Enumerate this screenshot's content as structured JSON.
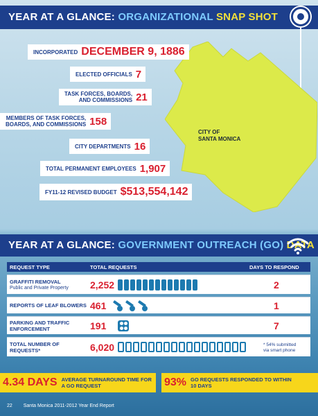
{
  "section1": {
    "title_part1": "YEAR AT A GLANCE:",
    "title_part2": "ORGANIZATIONAL",
    "title_part3": "SNAP SHOT"
  },
  "snapshot": [
    {
      "label": "INCORPORATED",
      "value": "DECEMBER 9, 1886"
    },
    {
      "label": "ELECTED OFFICIALS",
      "value": "7"
    },
    {
      "label": "TASK FORCES, BOARDS, AND COMMISSIONS",
      "label_line1": "TASK FORCES, BOARDS,",
      "label_line2": "AND COMMISSIONS",
      "value": "21"
    },
    {
      "label": "MEMBERS OF TASK FORCES, BOARDS, AND COMMISSIONS",
      "label_line1": "MEMBERS OF TASK FORCES,",
      "label_line2": "BOARDS, AND COMMISSIONS",
      "value": "158"
    },
    {
      "label": "CITY DEPARTMENTS",
      "value": "16"
    },
    {
      "label": "TOTAL PERMANENT EMPLOYEES",
      "value": "1,907"
    },
    {
      "label": "FY11-12 REVISED BUDGET",
      "value": "$513,554,142"
    }
  ],
  "map": {
    "label_line1": "CITY OF",
    "label_line2": "SANTA MONICA",
    "fill_color": "#dcea4a"
  },
  "section2": {
    "title_part1": "YEAR AT A GLANCE:",
    "title_part2": "GOVERNMENT OUTREACH (GO)",
    "title_part3": "DATA"
  },
  "go_table": {
    "headers": {
      "type": "REQUEST TYPE",
      "total": "TOTAL REQUESTS",
      "days": "DAYS TO RESPOND"
    },
    "rows": [
      {
        "type": "GRAFFITI REMOVAL",
        "sub": "Public and Private Property",
        "total": "2,252",
        "days": "2",
        "icon": "trash-bin-icon"
      },
      {
        "type": "REPORTS OF LEAF BLOWERS",
        "total": "461",
        "days": "1",
        "icon": "leaf-blower-icon"
      },
      {
        "type_line1": "PARKING AND TRAFFIC",
        "type_line2": "ENFORCEMENT",
        "total": "191",
        "days": "7",
        "icon": "parking-sign-icon"
      },
      {
        "type_line1": "TOTAL NUMBER OF",
        "type_line2": "REQUESTS*",
        "total": "6,020",
        "note_line1": "* 54% submitted",
        "note_line2": "via smart phone",
        "icon": "smart-phone-icon"
      }
    ]
  },
  "highlights": [
    {
      "big": "4.34 DAYS",
      "small_line1": "AVERAGE TURNAROUND TIME FOR",
      "small_line2": "A GO REQUEST"
    },
    {
      "big": "93%",
      "small_line1": "GO REQUESTS RESPONDED TO WITHIN",
      "small_line2": "10 DAYS"
    }
  ],
  "footer": {
    "page": "22",
    "text": "Santa Monica 2011-2012 Year End Report"
  },
  "colors": {
    "header_bg": "#1d3f8c",
    "accent_red": "#d9202f",
    "accent_yellow": "#f7d61b",
    "title_blue": "#7ecbff",
    "title_yellow": "#f2e03a"
  }
}
